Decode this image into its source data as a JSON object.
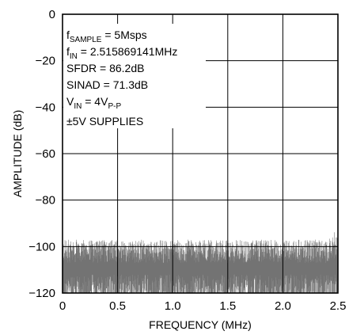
{
  "chart_data": {
    "type": "line",
    "title": "",
    "xlabel": "FREQUENCY (MHz)",
    "ylabel": "AMPLITUDE (dB)",
    "xlim": [
      0,
      2.5
    ],
    "ylim": [
      -120,
      0
    ],
    "x_ticks": [
      "0",
      "0.5",
      "1.0",
      "1.5",
      "2.0",
      "2.5"
    ],
    "y_ticks": [
      "0",
      "−20",
      "−40",
      "−60",
      "−80",
      "−100",
      "−120"
    ],
    "grid": true,
    "series": [
      {
        "description": "noise floor of FFT spectrum",
        "color": "#000000",
        "floor_db": -108,
        "peak_noise_db": -98
      }
    ],
    "annotations": {
      "fsample_main": "f",
      "fsample_sub": "SAMPLE",
      "fsample_val": " = 5Msps",
      "fin_main": "f",
      "fin_sub": "IN",
      "fin_val": " = 2.515869141MHz",
      "sfdr": "SFDR = 86.2dB",
      "sinad": "SINAD = 71.3dB",
      "vin_main": "V",
      "vin_sub": "IN",
      "vin_val": " = 4V",
      "vin_sub2": "P-P",
      "supplies": "±5V SUPPLIES"
    }
  }
}
